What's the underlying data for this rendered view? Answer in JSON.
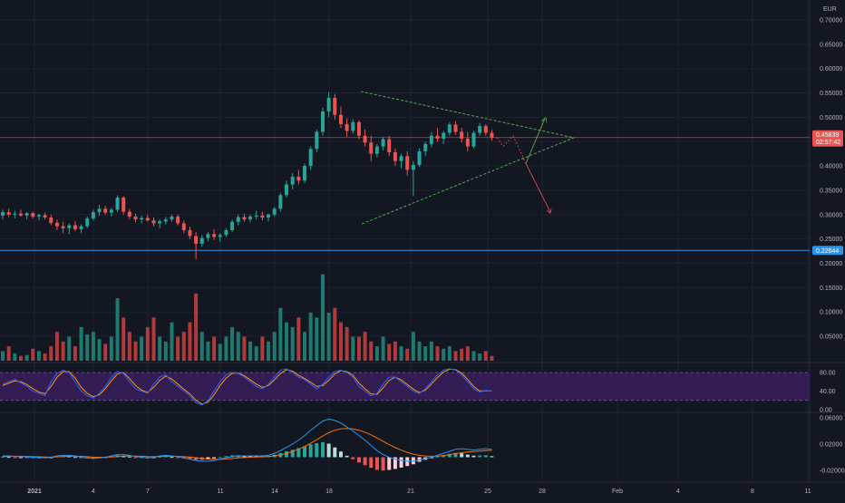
{
  "currency_label": "EUR",
  "colors": {
    "background": "#131722",
    "grid": "#1f2330",
    "axis_text": "#b2b5be",
    "bull": "#26a69a",
    "bear": "#ef5350",
    "vol_bull": "#1e7a70",
    "vol_bear": "#b23a3a",
    "support": "#2196f3",
    "last_price": "#ef5350",
    "triangle": "#4caf50",
    "rsi_band": "#3b1e5e",
    "rsi_k": "#2962ff",
    "rsi_d": "#ff9800",
    "macd": "#2196f3",
    "signal": "#ff6d00"
  },
  "price_axis": {
    "ticks": [
      "0.70000",
      "0.65000",
      "0.60000",
      "0.55000",
      "0.50000",
      "0.45000",
      "0.40000",
      "0.35000",
      "0.30000",
      "0.25000",
      "0.20000",
      "0.15000",
      "0.10000",
      "0.05000"
    ],
    "ylim": [
      0.0,
      0.72
    ]
  },
  "last_price_badge": {
    "price": "0.45839",
    "countdown": "02:57:42"
  },
  "support_badge": {
    "price": "0.22644"
  },
  "rsi_axis": {
    "ticks": [
      "80.00",
      "40.00",
      "0.00"
    ],
    "band": [
      20,
      80
    ]
  },
  "macd_axis": {
    "ticks": [
      "0.06000",
      "0.02000",
      "-0.02000"
    ],
    "ylim": [
      -0.03,
      0.07
    ]
  },
  "time_axis": {
    "labels": [
      "2021",
      "4",
      "7",
      "11",
      "14",
      "18",
      "21",
      "25",
      "28",
      "Feb",
      "4",
      "8",
      "11"
    ]
  },
  "chart_data": {
    "type": "candlestick",
    "candles": [
      [
        0.298,
        0.31,
        0.29,
        0.305
      ],
      [
        0.305,
        0.312,
        0.295,
        0.3
      ],
      [
        0.3,
        0.308,
        0.292,
        0.302
      ],
      [
        0.302,
        0.31,
        0.296,
        0.298
      ],
      [
        0.298,
        0.305,
        0.29,
        0.303
      ],
      [
        0.303,
        0.306,
        0.292,
        0.296
      ],
      [
        0.296,
        0.302,
        0.288,
        0.299
      ],
      [
        0.299,
        0.304,
        0.29,
        0.294
      ],
      [
        0.294,
        0.3,
        0.278,
        0.283
      ],
      [
        0.283,
        0.29,
        0.268,
        0.276
      ],
      [
        0.276,
        0.285,
        0.262,
        0.272
      ],
      [
        0.272,
        0.282,
        0.26,
        0.278
      ],
      [
        0.278,
        0.286,
        0.266,
        0.27
      ],
      [
        0.27,
        0.28,
        0.262,
        0.276
      ],
      [
        0.276,
        0.296,
        0.272,
        0.292
      ],
      [
        0.292,
        0.31,
        0.288,
        0.305
      ],
      [
        0.305,
        0.32,
        0.298,
        0.312
      ],
      [
        0.312,
        0.318,
        0.3,
        0.304
      ],
      [
        0.304,
        0.314,
        0.296,
        0.31
      ],
      [
        0.31,
        0.34,
        0.305,
        0.335
      ],
      [
        0.335,
        0.338,
        0.3,
        0.306
      ],
      [
        0.306,
        0.312,
        0.29,
        0.296
      ],
      [
        0.296,
        0.302,
        0.284,
        0.29
      ],
      [
        0.29,
        0.298,
        0.282,
        0.293
      ],
      [
        0.293,
        0.3,
        0.286,
        0.288
      ],
      [
        0.288,
        0.294,
        0.276,
        0.282
      ],
      [
        0.282,
        0.29,
        0.272,
        0.286
      ],
      [
        0.286,
        0.295,
        0.28,
        0.29
      ],
      [
        0.29,
        0.3,
        0.285,
        0.296
      ],
      [
        0.296,
        0.3,
        0.278,
        0.282
      ],
      [
        0.282,
        0.288,
        0.262,
        0.268
      ],
      [
        0.268,
        0.275,
        0.25,
        0.256
      ],
      [
        0.256,
        0.264,
        0.208,
        0.24
      ],
      [
        0.24,
        0.258,
        0.234,
        0.252
      ],
      [
        0.252,
        0.264,
        0.245,
        0.26
      ],
      [
        0.26,
        0.27,
        0.248,
        0.254
      ],
      [
        0.254,
        0.262,
        0.244,
        0.258
      ],
      [
        0.258,
        0.272,
        0.254,
        0.268
      ],
      [
        0.268,
        0.29,
        0.264,
        0.285
      ],
      [
        0.285,
        0.3,
        0.278,
        0.295
      ],
      [
        0.295,
        0.302,
        0.285,
        0.29
      ],
      [
        0.29,
        0.3,
        0.284,
        0.296
      ],
      [
        0.296,
        0.308,
        0.29,
        0.298
      ],
      [
        0.298,
        0.306,
        0.288,
        0.294
      ],
      [
        0.294,
        0.302,
        0.286,
        0.3
      ],
      [
        0.3,
        0.316,
        0.296,
        0.312
      ],
      [
        0.312,
        0.345,
        0.306,
        0.34
      ],
      [
        0.34,
        0.37,
        0.335,
        0.362
      ],
      [
        0.362,
        0.385,
        0.352,
        0.378
      ],
      [
        0.378,
        0.392,
        0.362,
        0.37
      ],
      [
        0.37,
        0.405,
        0.365,
        0.4
      ],
      [
        0.4,
        0.44,
        0.392,
        0.435
      ],
      [
        0.435,
        0.475,
        0.428,
        0.47
      ],
      [
        0.47,
        0.52,
        0.462,
        0.512
      ],
      [
        0.512,
        0.552,
        0.5,
        0.54
      ],
      [
        0.54,
        0.548,
        0.495,
        0.505
      ],
      [
        0.505,
        0.522,
        0.478,
        0.486
      ],
      [
        0.486,
        0.498,
        0.46,
        0.472
      ],
      [
        0.472,
        0.496,
        0.466,
        0.49
      ],
      [
        0.49,
        0.494,
        0.455,
        0.462
      ],
      [
        0.462,
        0.475,
        0.44,
        0.448
      ],
      [
        0.448,
        0.462,
        0.41,
        0.425
      ],
      [
        0.425,
        0.445,
        0.418,
        0.44
      ],
      [
        0.44,
        0.46,
        0.432,
        0.455
      ],
      [
        0.455,
        0.462,
        0.42,
        0.428
      ],
      [
        0.428,
        0.436,
        0.4,
        0.41
      ],
      [
        0.41,
        0.425,
        0.395,
        0.42
      ],
      [
        0.42,
        0.43,
        0.38,
        0.392
      ],
      [
        0.392,
        0.41,
        0.338,
        0.402
      ],
      [
        0.402,
        0.436,
        0.398,
        0.43
      ],
      [
        0.43,
        0.45,
        0.42,
        0.445
      ],
      [
        0.445,
        0.47,
        0.438,
        0.462
      ],
      [
        0.462,
        0.478,
        0.45,
        0.456
      ],
      [
        0.456,
        0.472,
        0.445,
        0.468
      ],
      [
        0.468,
        0.49,
        0.462,
        0.485
      ],
      [
        0.485,
        0.492,
        0.464,
        0.47
      ],
      [
        0.47,
        0.478,
        0.448,
        0.456
      ],
      [
        0.456,
        0.47,
        0.43,
        0.44
      ],
      [
        0.44,
        0.472,
        0.436,
        0.468
      ],
      [
        0.468,
        0.488,
        0.462,
        0.482
      ],
      [
        0.482,
        0.486,
        0.462,
        0.468
      ],
      [
        0.468,
        0.474,
        0.452,
        0.458
      ]
    ],
    "volume": [
      0.02,
      0.03,
      0.015,
      0.01,
      0.012,
      0.025,
      0.02,
      0.015,
      0.03,
      0.06,
      0.04,
      0.05,
      0.03,
      0.07,
      0.055,
      0.06,
      0.045,
      0.035,
      0.05,
      0.13,
      0.09,
      0.06,
      0.04,
      0.05,
      0.07,
      0.09,
      0.05,
      0.04,
      0.08,
      0.05,
      0.06,
      0.08,
      0.14,
      0.06,
      0.04,
      0.05,
      0.035,
      0.05,
      0.07,
      0.06,
      0.05,
      0.04,
      0.03,
      0.05,
      0.04,
      0.06,
      0.11,
      0.08,
      0.07,
      0.09,
      0.06,
      0.1,
      0.09,
      0.18,
      0.1,
      0.11,
      0.08,
      0.07,
      0.05,
      0.05,
      0.06,
      0.04,
      0.03,
      0.05,
      0.035,
      0.04,
      0.03,
      0.025,
      0.06,
      0.04,
      0.03,
      0.04,
      0.03,
      0.025,
      0.03,
      0.02,
      0.025,
      0.03,
      0.02,
      0.015,
      0.02,
      0.01
    ],
    "rsi": [
      55,
      60,
      65,
      58,
      50,
      40,
      35,
      30,
      60,
      78,
      85,
      80,
      60,
      40,
      30,
      25,
      35,
      50,
      70,
      82,
      78,
      60,
      45,
      40,
      35,
      55,
      70,
      75,
      60,
      50,
      40,
      30,
      15,
      10,
      20,
      40,
      60,
      75,
      80,
      78,
      70,
      60,
      50,
      45,
      55,
      70,
      85,
      88,
      80,
      70,
      65,
      55,
      45,
      55,
      70,
      82,
      85,
      80,
      70,
      50,
      40,
      30,
      35,
      55,
      70,
      70,
      60,
      50,
      40,
      35,
      45,
      60,
      75,
      85,
      88,
      85,
      75,
      60,
      45,
      38,
      42,
      40
    ],
    "rsi_signal": [
      52,
      57,
      62,
      60,
      54,
      45,
      38,
      34,
      50,
      70,
      82,
      82,
      68,
      48,
      35,
      28,
      32,
      45,
      62,
      77,
      80,
      67,
      52,
      42,
      37,
      48,
      63,
      72,
      66,
      55,
      44,
      34,
      20,
      12,
      16,
      32,
      52,
      68,
      78,
      79,
      73,
      64,
      55,
      48,
      52,
      64,
      78,
      86,
      83,
      74,
      67,
      59,
      50,
      52,
      63,
      77,
      84,
      82,
      74,
      57,
      45,
      34,
      33,
      47,
      63,
      70,
      64,
      54,
      44,
      37,
      42,
      55,
      69,
      81,
      87,
      86,
      79,
      65,
      50,
      40,
      41,
      40
    ],
    "macd": [
      0.002,
      0.002,
      0.001,
      0.001,
      0.0005,
      0.0,
      0.0,
      -0.001,
      0.0,
      0.002,
      0.003,
      0.003,
      0.002,
      0.0,
      -0.001,
      -0.002,
      -0.001,
      0.0,
      0.002,
      0.004,
      0.004,
      0.003,
      0.001,
      0.0,
      -0.001,
      0.0,
      0.002,
      0.003,
      0.002,
      0.001,
      -0.001,
      -0.003,
      -0.005,
      -0.006,
      -0.006,
      -0.005,
      -0.003,
      -0.001,
      0.001,
      0.002,
      0.002,
      0.002,
      0.002,
      0.002,
      0.003,
      0.006,
      0.01,
      0.015,
      0.02,
      0.026,
      0.033,
      0.041,
      0.048,
      0.055,
      0.058,
      0.056,
      0.052,
      0.046,
      0.04,
      0.033,
      0.026,
      0.018,
      0.01,
      0.004,
      0.0,
      -0.003,
      -0.005,
      -0.006,
      -0.006,
      -0.004,
      -0.002,
      0.0,
      0.003,
      0.006,
      0.009,
      0.012,
      0.013,
      0.012,
      0.011,
      0.012,
      0.013,
      0.012
    ],
    "macd_signal": [
      0.001,
      0.0015,
      0.0015,
      0.0013,
      0.0012,
      0.0009,
      0.0007,
      0.0003,
      0.0002,
      0.0006,
      0.0011,
      0.0015,
      0.0016,
      0.0013,
      0.0008,
      0.0002,
      0.0,
      0.0,
      0.0004,
      0.0011,
      0.0017,
      0.002,
      0.0018,
      0.0015,
      0.001,
      0.0008,
      0.001,
      0.0014,
      0.0015,
      0.0014,
      0.0009,
      0.0001,
      -0.0009,
      -0.0019,
      -0.0027,
      -0.0032,
      -0.0031,
      -0.0027,
      -0.0019,
      -0.0011,
      -0.0005,
      -0.0,
      0.0004,
      0.0007,
      0.0011,
      0.002,
      0.0036,
      0.0059,
      0.0087,
      0.0122,
      0.0163,
      0.0213,
      0.0266,
      0.0323,
      0.0374,
      0.0411,
      0.0433,
      0.0438,
      0.0431,
      0.041,
      0.038,
      0.034,
      0.0292,
      0.0242,
      0.0193,
      0.0148,
      0.0108,
      0.0074,
      0.0047,
      0.0029,
      0.0019,
      0.0015,
      0.0018,
      0.0026,
      0.0039,
      0.0055,
      0.007,
      0.008,
      0.0086,
      0.0093,
      0.01,
      0.0104
    ]
  }
}
